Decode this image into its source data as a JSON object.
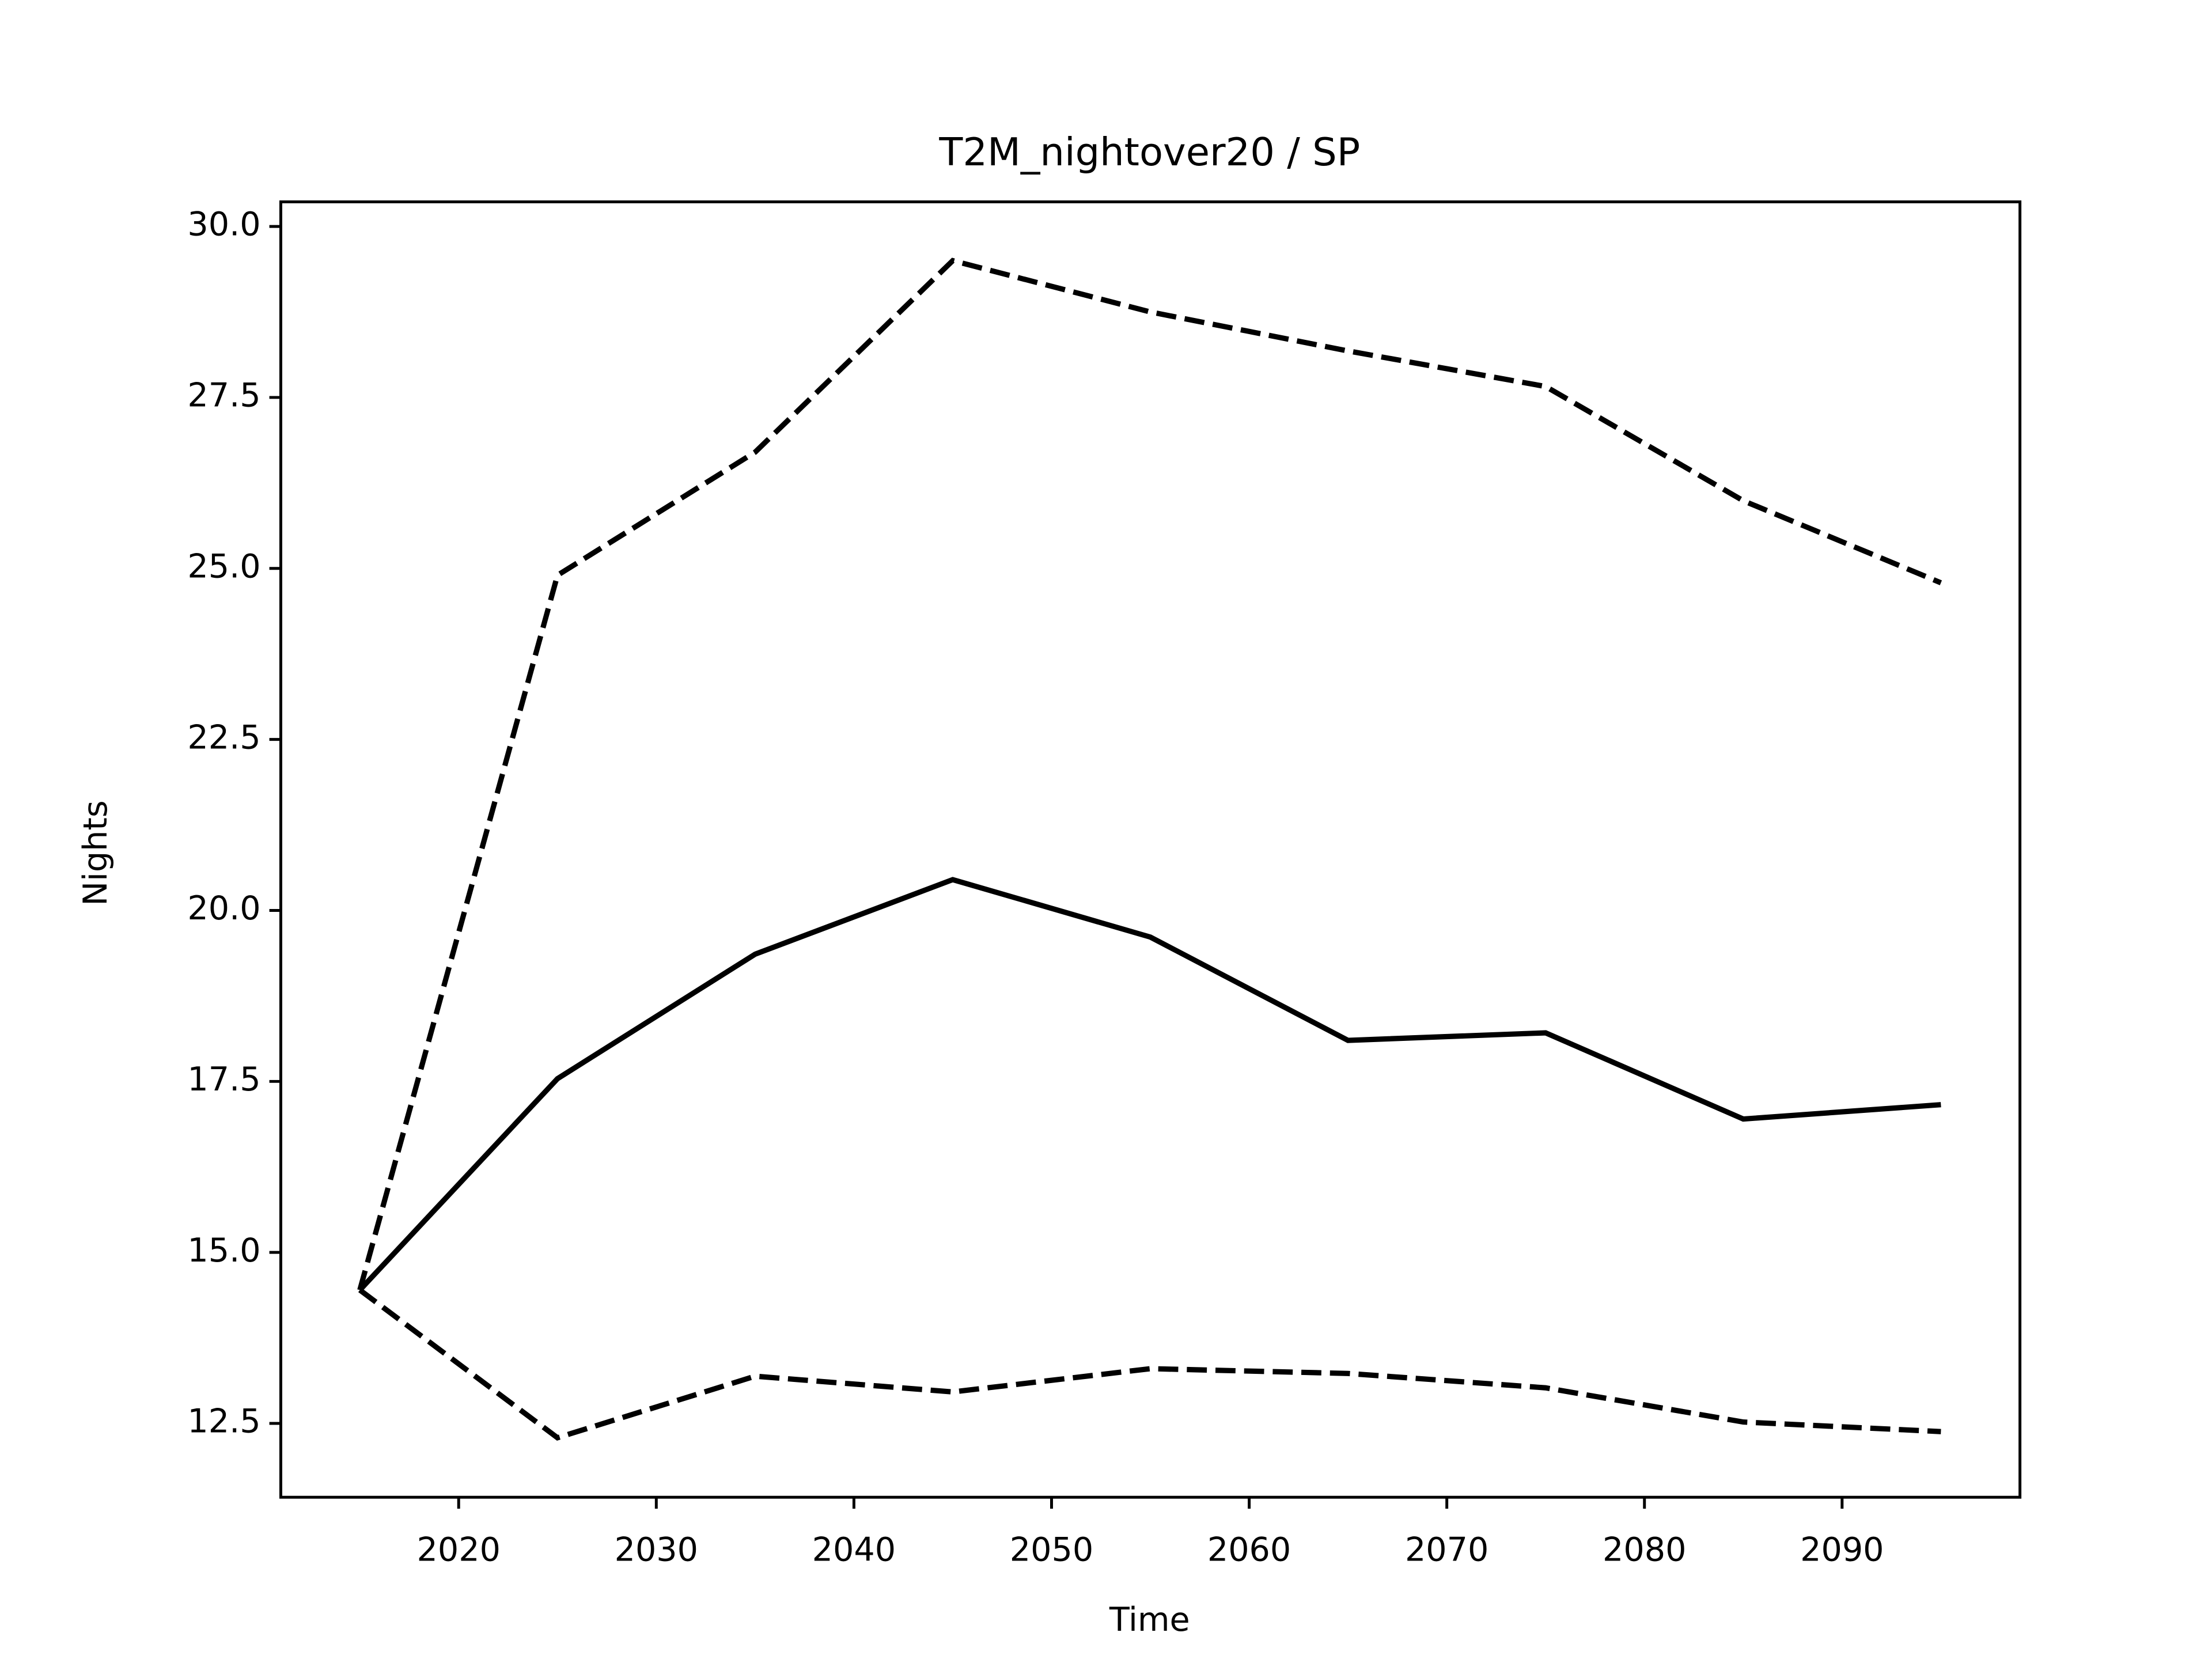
{
  "chart_data": {
    "type": "line",
    "title": "T2M_nightover20 / SP",
    "xlabel": "Time",
    "ylabel": "Nights",
    "x": [
      2015,
      2025,
      2035,
      2045,
      2055,
      2065,
      2075,
      2085,
      2095
    ],
    "series": [
      {
        "color": "#000000",
        "linestyle": "solid",
        "values": [
          14.45,
          17.54,
          19.36,
          20.45,
          19.61,
          18.1,
          18.21,
          16.95,
          17.16
        ]
      },
      {
        "color": "#000000",
        "linestyle": "dashed",
        "values": [
          14.45,
          24.9,
          26.7,
          29.5,
          28.75,
          28.18,
          27.66,
          25.99,
          24.79
        ]
      },
      {
        "color": "#000000",
        "linestyle": "dashed",
        "values": [
          14.45,
          12.29,
          13.19,
          12.96,
          13.3,
          13.23,
          13.02,
          12.52,
          12.38
        ]
      }
    ],
    "xlim": [
      2011,
      2099
    ],
    "xticks": [
      2020,
      2030,
      2040,
      2050,
      2060,
      2070,
      2080,
      2090
    ],
    "ylim": [
      11.42,
      30.36
    ],
    "yticks": [
      {
        "value": 12.5,
        "label": "12.5"
      },
      {
        "value": 15,
        "label": "15.0"
      },
      {
        "value": 17.5,
        "label": "17.5"
      },
      {
        "value": 20,
        "label": "20.0"
      },
      {
        "value": 22.5,
        "label": "22.5"
      },
      {
        "value": 25,
        "label": "25.0"
      },
      {
        "value": 27.5,
        "label": "27.5"
      },
      {
        "value": 30,
        "label": "30.0"
      }
    ]
  }
}
